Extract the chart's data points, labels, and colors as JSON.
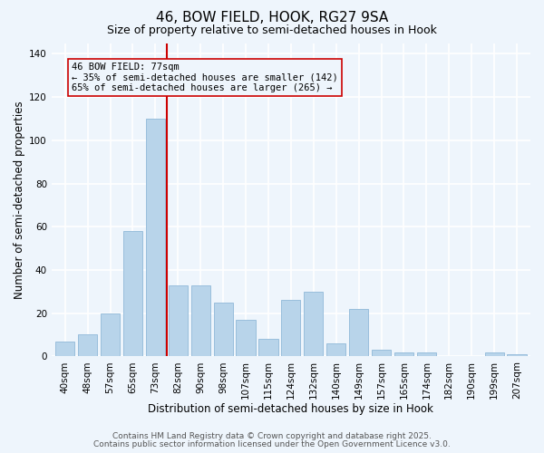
{
  "title": "46, BOW FIELD, HOOK, RG27 9SA",
  "subtitle": "Size of property relative to semi-detached houses in Hook",
  "xlabel": "Distribution of semi-detached houses by size in Hook",
  "ylabel": "Number of semi-detached properties",
  "bar_labels": [
    "40sqm",
    "48sqm",
    "57sqm",
    "65sqm",
    "73sqm",
    "82sqm",
    "90sqm",
    "98sqm",
    "107sqm",
    "115sqm",
    "124sqm",
    "132sqm",
    "140sqm",
    "149sqm",
    "157sqm",
    "165sqm",
    "174sqm",
    "182sqm",
    "190sqm",
    "199sqm",
    "207sqm"
  ],
  "bar_values": [
    7,
    10,
    20,
    58,
    110,
    33,
    33,
    25,
    17,
    8,
    26,
    30,
    6,
    22,
    3,
    2,
    2,
    0,
    0,
    2,
    1
  ],
  "bar_color": "#b8d4ea",
  "bar_edge_color": "#90b8d8",
  "annotation_title": "46 BOW FIELD: 77sqm",
  "annotation_line1": "← 35% of semi-detached houses are smaller (142)",
  "annotation_line2": "65% of semi-detached houses are larger (265) →",
  "vline_color": "#cc0000",
  "annotation_box_edge": "#cc0000",
  "ylim": [
    0,
    145
  ],
  "yticks": [
    0,
    20,
    40,
    60,
    80,
    100,
    120,
    140
  ],
  "footnote1": "Contains HM Land Registry data © Crown copyright and database right 2025.",
  "footnote2": "Contains public sector information licensed under the Open Government Licence v3.0.",
  "background_color": "#eef5fc",
  "grid_color": "#ffffff",
  "title_fontsize": 11,
  "subtitle_fontsize": 9,
  "axis_label_fontsize": 8.5,
  "tick_fontsize": 7.5,
  "annotation_fontsize": 7.5,
  "footnote_fontsize": 6.5
}
